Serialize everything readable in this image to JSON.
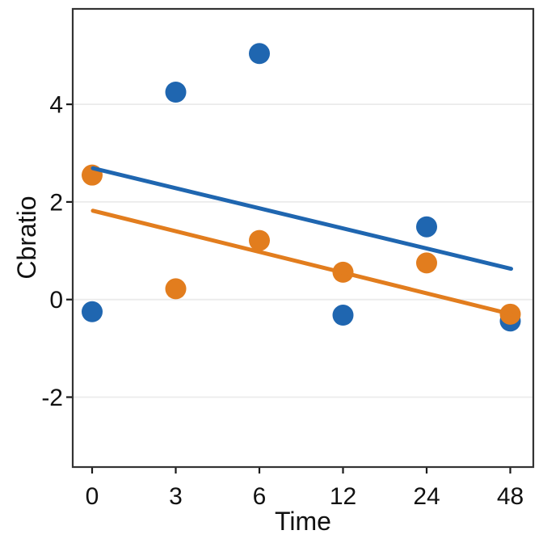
{
  "figure": {
    "background": "#ffffff",
    "panel_border_color": "#333333",
    "gridline_color": "#ebebeb",
    "tick_color": "#1a1a1a",
    "text_color": "#111111"
  },
  "chart_data": {
    "type": "scatter",
    "title": "",
    "xlabel": "Time",
    "ylabel": "Cbratio",
    "x_categories": [
      "0",
      "3",
      "6",
      "12",
      "24",
      "48"
    ],
    "x_values": [
      0,
      3,
      6,
      12,
      24,
      48
    ],
    "x_axis_spacing": "equal",
    "y_tick_labels": [
      "-2",
      "0",
      "2",
      "4"
    ],
    "y_tick_values": [
      -2,
      0,
      2,
      4
    ],
    "ylim": [
      -3.43,
      5.95
    ],
    "grid": "horizontal-only",
    "legend": "none",
    "series": [
      {
        "name": "series-blue",
        "color": "#1f66b0",
        "marker_radius": 13,
        "points": [
          {
            "x": 0,
            "y": -0.25
          },
          {
            "x": 3,
            "y": 4.25
          },
          {
            "x": 6,
            "y": 5.04
          },
          {
            "x": 12,
            "y": -0.32
          },
          {
            "x": 24,
            "y": 1.49
          },
          {
            "x": 48,
            "y": -0.44
          }
        ],
        "trend_line": {
          "x_start": 0,
          "y_start": 2.69,
          "x_end": 48,
          "y_end": 0.63
        }
      },
      {
        "name": "series-orange",
        "color": "#e27d1e",
        "marker_radius": 13,
        "points": [
          {
            "x": 0,
            "y": 2.55
          },
          {
            "x": 3,
            "y": 0.22
          },
          {
            "x": 6,
            "y": 1.21
          },
          {
            "x": 12,
            "y": 0.56
          },
          {
            "x": 24,
            "y": 0.75
          },
          {
            "x": 48,
            "y": -0.3
          }
        ],
        "trend_line": {
          "x_start": 0,
          "y_start": 1.82,
          "x_end": 48,
          "y_end": -0.3
        }
      }
    ]
  }
}
